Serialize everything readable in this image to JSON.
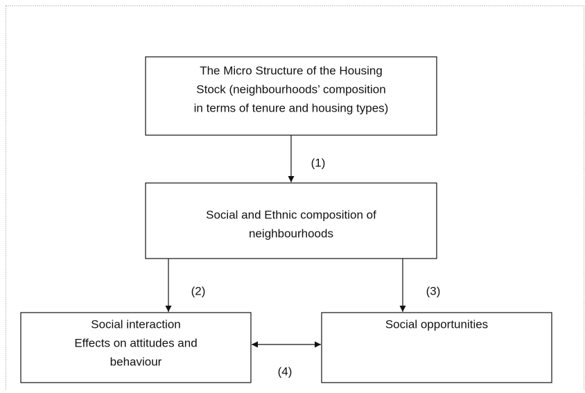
{
  "nodes": [
    {
      "lines": [
        "The Micro Structure of the Housing",
        "Stock (neighbourhoods’ composition",
        "in terms of tenure and housing types)"
      ]
    },
    {
      "lines": [
        "Social and Ethnic composition of",
        "neighbourhoods"
      ]
    },
    {
      "lines": [
        "Social interaction",
        "Effects on attitudes and",
        "behaviour"
      ]
    },
    {
      "lines": [
        "Social opportunities"
      ]
    }
  ],
  "edges": [
    {
      "label": "(1)"
    },
    {
      "label": "(2)"
    },
    {
      "label": "(3)"
    },
    {
      "label": "(4)"
    }
  ]
}
